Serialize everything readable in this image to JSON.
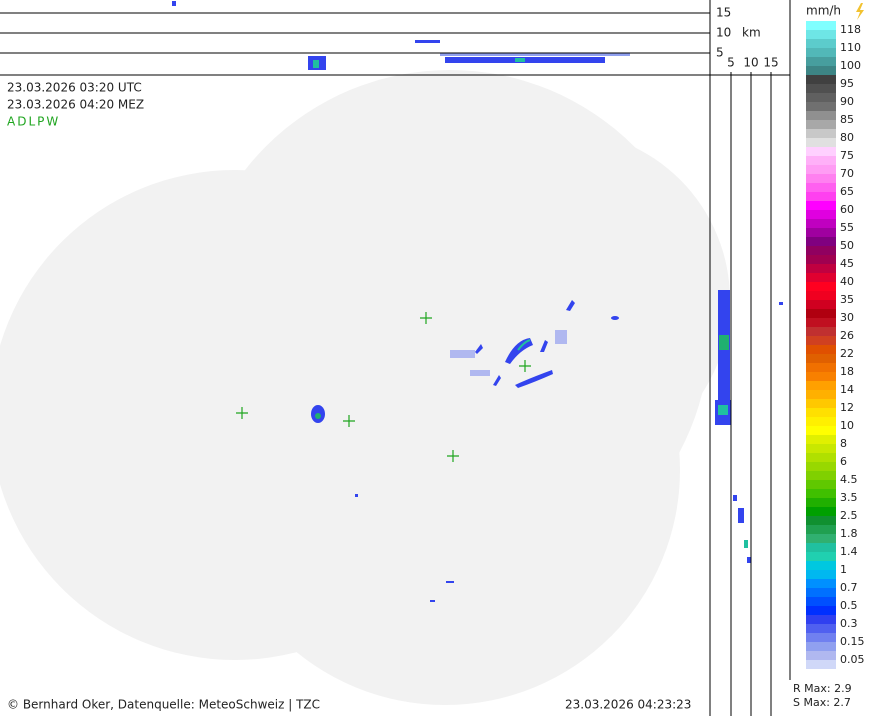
{
  "top_profile": {
    "height_labels": [
      "15",
      "10",
      "5"
    ],
    "unit": "km"
  },
  "side_profile": {
    "distance_labels": [
      "5",
      "10",
      "15"
    ]
  },
  "header": {
    "utc": "23.03.2026 03:20 UTC",
    "mez": "23.03.2026 04:20 MEZ",
    "station": "ADLPW"
  },
  "legend": {
    "unit": "mm/h",
    "items": [
      {
        "label": "118",
        "colors": [
          "#80ffff",
          "#6ee6e6"
        ]
      },
      {
        "label": "110",
        "colors": [
          "#5ccccc",
          "#52b8b8"
        ]
      },
      {
        "label": "100",
        "colors": [
          "#479e9e",
          "#3d8585"
        ]
      },
      {
        "label": "95",
        "colors": [
          "#404040",
          "#505050"
        ]
      },
      {
        "label": "90",
        "colors": [
          "#606060",
          "#707070"
        ]
      },
      {
        "label": "85",
        "colors": [
          "#909090",
          "#a8a8a8"
        ]
      },
      {
        "label": "80",
        "colors": [
          "#c8c8c8",
          "#e0e0e0"
        ]
      },
      {
        "label": "75",
        "colors": [
          "#ffd0ff",
          "#ffb0f8"
        ]
      },
      {
        "label": "70",
        "colors": [
          "#ff9cf4",
          "#ff80f0"
        ]
      },
      {
        "label": "65",
        "colors": [
          "#ff60f0",
          "#ff40f0"
        ]
      },
      {
        "label": "60",
        "colors": [
          "#ff00ff",
          "#e000e0"
        ]
      },
      {
        "label": "55",
        "colors": [
          "#c000c0",
          "#a000a0"
        ]
      },
      {
        "label": "50",
        "colors": [
          "#800080",
          "#900060"
        ]
      },
      {
        "label": "45",
        "colors": [
          "#a00050",
          "#c00040"
        ]
      },
      {
        "label": "40",
        "colors": [
          "#e00030",
          "#ff0020"
        ]
      },
      {
        "label": "35",
        "colors": [
          "#f00020",
          "#d00020"
        ]
      },
      {
        "label": "30",
        "colors": [
          "#b00010",
          "#c01020"
        ]
      },
      {
        "label": "26",
        "colors": [
          "#c03030",
          "#d04020"
        ]
      },
      {
        "label": "22",
        "colors": [
          "#e05000",
          "#e06000"
        ]
      },
      {
        "label": "18",
        "colors": [
          "#f07000",
          "#f88000"
        ]
      },
      {
        "label": "14",
        "colors": [
          "#ffa000",
          "#ffb000"
        ]
      },
      {
        "label": "12",
        "colors": [
          "#ffc800",
          "#ffe000"
        ]
      },
      {
        "label": "10",
        "colors": [
          "#fff000",
          "#ffff00"
        ]
      },
      {
        "label": "8",
        "colors": [
          "#e0f000",
          "#c8e800"
        ]
      },
      {
        "label": "6",
        "colors": [
          "#b0e000",
          "#98d800"
        ]
      },
      {
        "label": "4.5",
        "colors": [
          "#80d000",
          "#60c800"
        ]
      },
      {
        "label": "3.5",
        "colors": [
          "#40c000",
          "#20b000"
        ]
      },
      {
        "label": "2.5",
        "colors": [
          "#00a000",
          "#109030"
        ]
      },
      {
        "label": "1.8",
        "colors": [
          "#20a050",
          "#30b070"
        ]
      },
      {
        "label": "1.4",
        "colors": [
          "#20c0a0",
          "#20d0b0"
        ]
      },
      {
        "label": "1",
        "colors": [
          "#00c8e0",
          "#00b8f0"
        ]
      },
      {
        "label": "0.7",
        "colors": [
          "#0090ff",
          "#0070ff"
        ]
      },
      {
        "label": "0.5",
        "colors": [
          "#0050ff",
          "#0030ff"
        ]
      },
      {
        "label": "0.3",
        "colors": [
          "#3040f0",
          "#5060f0"
        ]
      },
      {
        "label": "0.15",
        "colors": [
          "#7080f0",
          "#90a0f0"
        ]
      },
      {
        "label": "0.05",
        "colors": [
          "#b0b8f0",
          "#d0d8f8"
        ]
      }
    ]
  },
  "footer": {
    "credit": "© Bernhard Oker, Datenquelle: MeteoSchweiz | TZC",
    "timestamp": "23.03.2026 04:23:23"
  },
  "stats": {
    "r_max": "R Max: 2.9",
    "s_max": "S Max: 2.7"
  }
}
